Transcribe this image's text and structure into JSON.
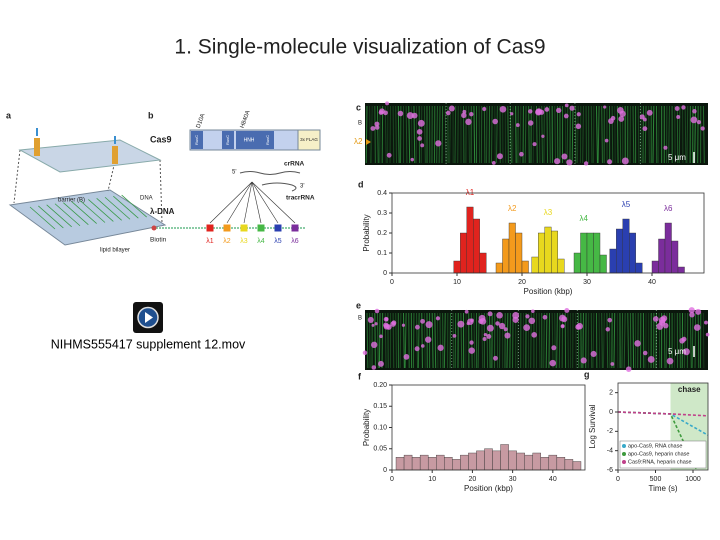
{
  "title": "1. Single-molecule visualization of Cas9",
  "media": {
    "file": "NIHMS555417 supplement 12.mov"
  },
  "panel_a": {
    "label": "a",
    "barrier": "barrier (B)",
    "dna": "DNA",
    "bilayer": "lipid bilayer"
  },
  "panel_b": {
    "label": "b",
    "protein": "Cas9",
    "mutations": [
      "D10A",
      "H840A"
    ],
    "domains": [
      "RuvC",
      "RuvC",
      "HNH",
      "RuvC",
      "3x FLAG"
    ],
    "crrna": "crRNA",
    "tracrrna": "tracrRNA",
    "five_prime": "5'",
    "three_prime": "3'",
    "dna": "λ-DNA",
    "biotin": "Biotin",
    "sites": [
      "λ1",
      "λ2",
      "λ3",
      "λ4",
      "λ5",
      "λ6"
    ]
  },
  "panel_c": {
    "label": "c",
    "barrier": "B",
    "marker": "λ2",
    "scale": "5 μm"
  },
  "panel_e": {
    "label": "e",
    "barrier": "B",
    "scale": "5 μm"
  },
  "chart_data": [
    {
      "panel": "d",
      "type": "histogram",
      "xlabel": "Position (kbp)",
      "ylabel": "Probability",
      "xlim": [
        0,
        48
      ],
      "ylim": [
        0,
        0.4
      ],
      "xticks": [
        0,
        10,
        20,
        30,
        40
      ],
      "yticks": [
        0,
        0.1,
        0.2,
        0.3,
        0.4
      ],
      "series": [
        {
          "name": "λ1",
          "color": "#e0231e",
          "bins": [
            9.5,
            10.5,
            11.5,
            12.5,
            13.5,
            14.5
          ],
          "values": [
            0.06,
            0.2,
            0.33,
            0.27,
            0.1
          ]
        },
        {
          "name": "λ2",
          "color": "#f39a1c",
          "bins": [
            16,
            17,
            18,
            19,
            20,
            21
          ],
          "values": [
            0.05,
            0.17,
            0.25,
            0.2,
            0.06
          ]
        },
        {
          "name": "λ3",
          "color": "#e8d81e",
          "bins": [
            21.5,
            22.5,
            23.5,
            24.5,
            25.5,
            26.5
          ],
          "values": [
            0.08,
            0.2,
            0.23,
            0.21,
            0.07
          ]
        },
        {
          "name": "λ4",
          "color": "#46b845",
          "bins": [
            28,
            29,
            30,
            31,
            32,
            33
          ],
          "values": [
            0.1,
            0.2,
            0.2,
            0.2,
            0.09
          ]
        },
        {
          "name": "λ5",
          "color": "#2a3fb0",
          "bins": [
            33.5,
            34.5,
            35.5,
            36.5,
            37.5,
            38.5
          ],
          "values": [
            0.12,
            0.22,
            0.27,
            0.2,
            0.05
          ]
        },
        {
          "name": "λ6",
          "color": "#7b2d9c",
          "bins": [
            40,
            41,
            42,
            43,
            44,
            45
          ],
          "values": [
            0.06,
            0.17,
            0.25,
            0.16,
            0.03
          ]
        }
      ]
    },
    {
      "panel": "f",
      "type": "histogram",
      "xlabel": "Position (kbp)",
      "ylabel": "Probability",
      "xlim": [
        0,
        48
      ],
      "ylim": [
        0,
        0.2
      ],
      "xticks": [
        0,
        10,
        20,
        30,
        40
      ],
      "yticks": [
        0,
        0.05,
        {
          "value": 0.1,
          "label": "0.10"
        },
        0.15,
        {
          "value": 0.2,
          "label": "0.20"
        }
      ],
      "color": "#c79aa2",
      "bins": [
        1,
        3,
        5,
        7,
        9,
        11,
        13,
        15,
        17,
        19,
        21,
        23,
        25,
        27,
        29,
        31,
        33,
        35,
        37,
        39,
        41,
        43,
        45,
        47
      ],
      "values": [
        0.03,
        0.035,
        0.03,
        0.035,
        0.03,
        0.035,
        0.03,
        0.025,
        0.035,
        0.04,
        0.045,
        0.05,
        0.045,
        0.06,
        0.045,
        0.04,
        0.035,
        0.04,
        0.03,
        0.035,
        0.03,
        0.025,
        0.02
      ]
    },
    {
      "panel": "g",
      "type": "line",
      "xlabel": "Time (s)",
      "ylabel": "Log Survival",
      "xlim": [
        0,
        1200
      ],
      "ylim": [
        -6,
        3
      ],
      "xticks": [
        0,
        500,
        1000
      ],
      "yticks": [
        2,
        0,
        -2,
        -4,
        -6
      ],
      "chase_region": {
        "label": "chase",
        "x": [
          700,
          1200
        ]
      },
      "legend": "lower right",
      "series": [
        {
          "name": "apo-Cas9, RNA chase",
          "color": "#39a9c9",
          "x": [
            0,
            700,
            1200
          ],
          "values": [
            0,
            -0.2,
            -2.4
          ]
        },
        {
          "name": "apo-Cas9, heparin chase",
          "color": "#3d9a3d",
          "x": [
            0,
            700,
            1050
          ],
          "values": [
            0,
            -0.2,
            -6
          ]
        },
        {
          "name": "Cas9:RNA, heparin chase",
          "color": "#c0408a",
          "x": [
            0,
            700,
            1200
          ],
          "values": [
            0,
            -0.2,
            -0.4
          ]
        }
      ]
    }
  ]
}
